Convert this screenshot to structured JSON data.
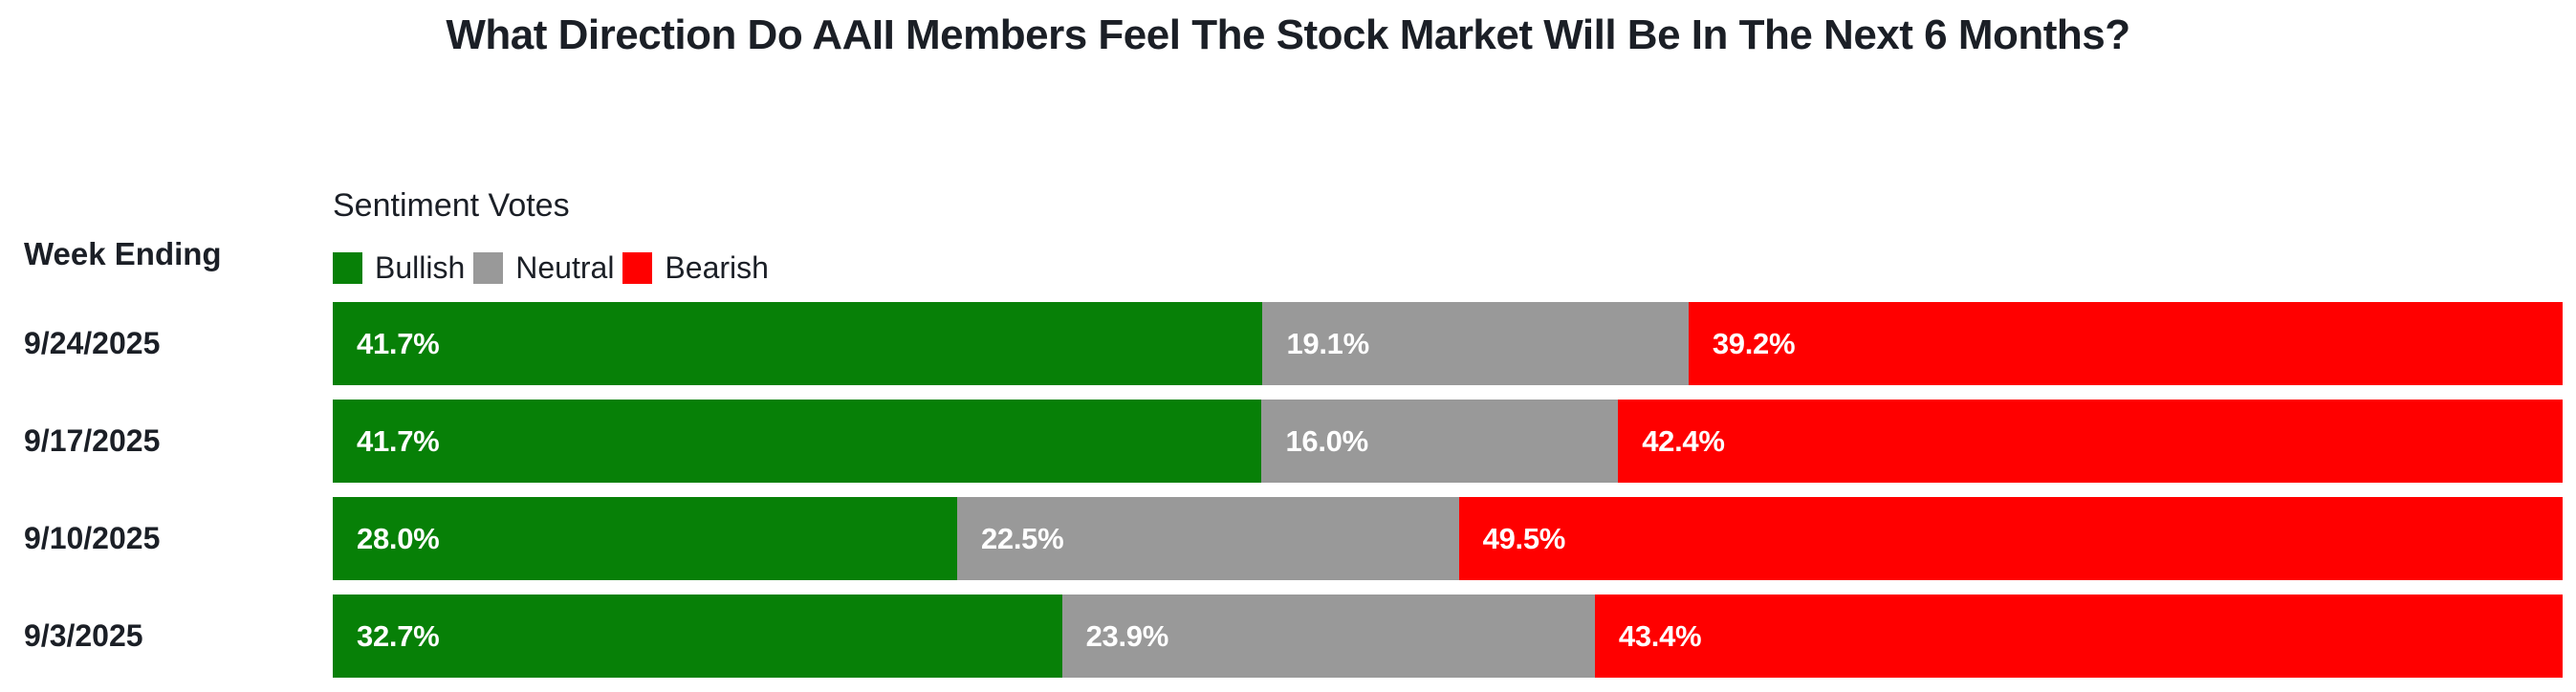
{
  "title": "What Direction Do AAII Members Feel The Stock Market Will Be In The Next 6 Months?",
  "week_ending_label": "Week Ending",
  "legend": {
    "title": "Sentiment Votes",
    "items": [
      {
        "label": "Bullish",
        "color": "#078007"
      },
      {
        "label": "Neutral",
        "color": "#999999"
      },
      {
        "label": "Bearish",
        "color": "#ff0000"
      }
    ]
  },
  "colors": {
    "bullish": "#078007",
    "neutral": "#999999",
    "bearish": "#ff0000",
    "text": "#1b1f26",
    "value_label": "#ffffff",
    "background": "#ffffff"
  },
  "chart_data": {
    "type": "bar",
    "orientation": "horizontal",
    "stacked": true,
    "title": "What Direction Do AAII Members Feel The Stock Market Will Be In The Next 6 Months?",
    "categories": [
      "9/24/2025",
      "9/17/2025",
      "9/10/2025",
      "9/3/2025"
    ],
    "series": [
      {
        "name": "Bullish",
        "color": "#078007",
        "values": [
          41.7,
          41.7,
          28.0,
          32.7
        ]
      },
      {
        "name": "Neutral",
        "color": "#999999",
        "values": [
          19.1,
          16.0,
          22.5,
          23.9
        ]
      },
      {
        "name": "Bearish",
        "color": "#ff0000",
        "values": [
          39.2,
          42.4,
          49.5,
          43.4
        ]
      }
    ],
    "value_suffix": "%",
    "xlim": [
      0,
      100
    ],
    "grid": false,
    "legend_position": "top-left",
    "value_labels": "inside-start"
  }
}
